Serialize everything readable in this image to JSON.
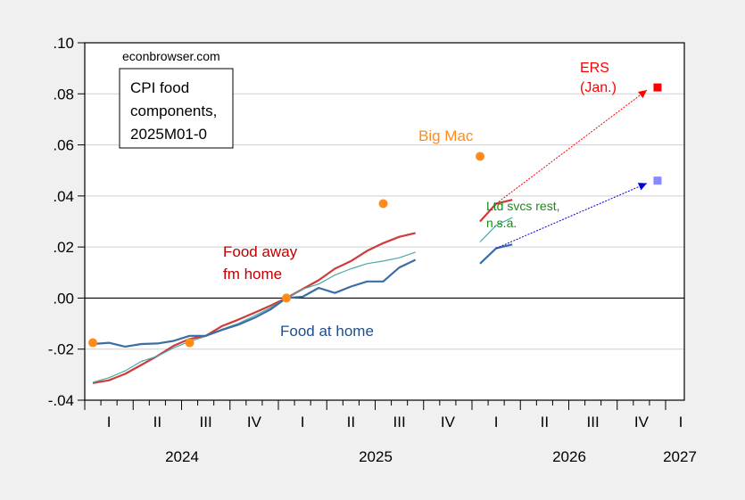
{
  "chart_data": {
    "type": "line",
    "title": "CPI food components, 2025M01-0",
    "source_label": "econbrowser.com",
    "xlabel": "",
    "ylabel": "",
    "ylim": [
      -0.04,
      0.1
    ],
    "yticks": [
      ".10",
      ".08",
      ".06",
      ".04",
      ".02",
      ".00",
      "-.02",
      "-.04"
    ],
    "ytick_values": [
      0.1,
      0.08,
      0.06,
      0.04,
      0.02,
      0.0,
      -0.02,
      -0.04
    ],
    "x_period": "monthly, 2024M01 to 2026M12",
    "quarter_labels": [
      "I",
      "II",
      "III",
      "IV",
      "I",
      "II",
      "III",
      "IV",
      "I",
      "II",
      "III",
      "IV",
      "I"
    ],
    "year_labels": [
      "2024",
      "2025",
      "2026",
      "2027"
    ],
    "grid": true,
    "zero_line": true,
    "series": [
      {
        "name": "Food away fm home",
        "color": "#d03a3a",
        "segments": [
          {
            "start_month": 0,
            "values": [
              -0.0333,
              -0.0322,
              -0.0297,
              -0.0262,
              -0.0227,
              -0.0187,
              -0.016,
              -0.0148,
              -0.011,
              -0.0085,
              -0.0058,
              -0.003,
              0.0,
              0.0035,
              0.007,
              0.0115,
              0.0145,
              0.0185,
              0.0215,
              0.024,
              0.0255
            ]
          },
          {
            "start_month": 24,
            "values": [
              0.03,
              0.037,
              0.0385
            ]
          }
        ]
      },
      {
        "name": "Ltd svcs rest, n.s.a.",
        "color": "#4aa8a8",
        "segments": [
          {
            "start_month": 0,
            "values": [
              -0.033,
              -0.0312,
              -0.0285,
              -0.0248,
              -0.0228,
              -0.0195,
              -0.017,
              -0.015,
              -0.0122,
              -0.01,
              -0.007,
              -0.0038,
              0.0,
              0.0035,
              0.0055,
              0.009,
              0.0115,
              0.0135,
              0.0145,
              0.0158,
              0.018
            ]
          },
          {
            "start_month": 24,
            "values": [
              0.022,
              0.0285,
              0.0315
            ]
          }
        ]
      },
      {
        "name": "Food at home",
        "color": "#3a6ea5",
        "segments": [
          {
            "start_month": 0,
            "values": [
              -0.018,
              -0.0175,
              -0.019,
              -0.018,
              -0.0178,
              -0.0168,
              -0.0148,
              -0.0148,
              -0.0125,
              -0.0105,
              -0.0078,
              -0.0045,
              0.0,
              0.0005,
              0.004,
              0.002,
              0.0045,
              0.0065,
              0.0065,
              0.012,
              0.015
            ]
          },
          {
            "start_month": 24,
            "values": [
              0.0135,
              0.0195,
              0.021
            ]
          }
        ]
      }
    ],
    "big_mac": {
      "name": "Big Mac",
      "color": "#ff8c1a",
      "points": [
        {
          "month": 0,
          "value": -0.0175
        },
        {
          "month": 6,
          "value": -0.0175
        },
        {
          "month": 12,
          "value": 0.0
        },
        {
          "month": 18,
          "value": 0.037
        },
        {
          "month": 24,
          "value": 0.0555
        }
      ]
    },
    "forecasts": [
      {
        "name": "ERS (Jan.)",
        "color": "#ff0000",
        "marker_color": "#ff0000",
        "from_month": 25,
        "from_value": 0.037,
        "to_month": 35,
        "to_value": 0.0825
      },
      {
        "name": "Food at home forecast",
        "color": "#0000dd",
        "marker_color": "#8888ff",
        "from_month": 25,
        "from_value": 0.0195,
        "to_month": 35,
        "to_value": 0.046
      }
    ],
    "annotations": [
      {
        "text": "Food away",
        "color": "#c00000"
      },
      {
        "text": "fm home",
        "color": "#c00000"
      },
      {
        "text": "Food at home",
        "color": "#1f4e8c"
      },
      {
        "text": "Big Mac",
        "color": "#ff8c1a"
      },
      {
        "text": "ERS",
        "color": "#ff0000"
      },
      {
        "text": "(Jan.)",
        "color": "#ff0000"
      },
      {
        "text": "Ltd svcs rest,",
        "color": "#1a8a1a"
      },
      {
        "text": "n.s.a.",
        "color": "#1a8a1a"
      }
    ],
    "title_lines": [
      "CPI food",
      "components,",
      "2025M01-0"
    ]
  }
}
